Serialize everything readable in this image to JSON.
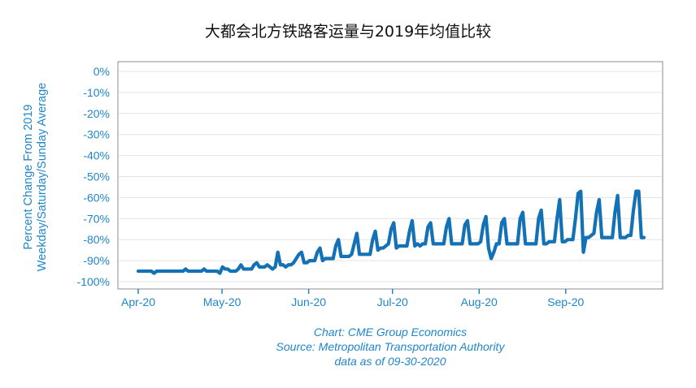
{
  "chart_data": {
    "type": "line",
    "title": "大都会北方铁路客运量与2019年均值比较",
    "ylabel_line1": "Percent Change From 2019",
    "ylabel_line2": "Weekday/Saturday/Sunday Average",
    "ylim": [
      -100,
      0
    ],
    "yticks": [
      0,
      -10,
      -20,
      -30,
      -40,
      -50,
      -60,
      -70,
      -80,
      -90,
      -100
    ],
    "ytick_labels": [
      "0%",
      "-10%",
      "-20%",
      "-30%",
      "-40%",
      "-50%",
      "-60%",
      "-70%",
      "-80%",
      "-90%",
      "-100%"
    ],
    "x_start": "2020-04-01",
    "x_end": "2020-09-29",
    "xticks": [
      "2020-04-01",
      "2020-05-01",
      "2020-06-01",
      "2020-07-01",
      "2020-08-01",
      "2020-09-01"
    ],
    "xtick_labels": [
      "Apr-20",
      "May-20",
      "Jun-20",
      "Jul-20",
      "Aug-20",
      "Sep-20"
    ],
    "grid": true,
    "line_color": "#1371b5",
    "series": [
      {
        "values": [
          -95,
          -95,
          -95,
          -95,
          -95,
          -95,
          -96,
          -95,
          -95,
          -95,
          -95,
          -95,
          -95,
          -95,
          -95,
          -95,
          -95,
          -95,
          -94,
          -95,
          -95,
          -95,
          -95,
          -95,
          -95,
          -94,
          -95,
          -95,
          -95,
          -95,
          -95,
          -96,
          -93,
          -94,
          -94,
          -95,
          -95,
          -95,
          -94,
          -92,
          -94,
          -94,
          -94,
          -94,
          -92,
          -91,
          -93,
          -93,
          -93,
          -92,
          -93,
          -94,
          -93,
          -86,
          -92,
          -92,
          -93,
          -92,
          -92,
          -91,
          -89,
          -87,
          -86,
          -91,
          -91,
          -90,
          -90,
          -90,
          -86,
          -84,
          -90,
          -89,
          -89,
          -89,
          -89,
          -83,
          -80,
          -88,
          -88,
          -88,
          -88,
          -87,
          -82,
          -77,
          -87,
          -87,
          -87,
          -87,
          -87,
          -80,
          -76,
          -85,
          -84,
          -84,
          -83,
          -82,
          -75,
          -72,
          -84,
          -83,
          -83,
          -83,
          -83,
          -76,
          -71,
          -83,
          -82,
          -83,
          -82,
          -82,
          -74,
          -72,
          -82,
          -82,
          -82,
          -82,
          -82,
          -74,
          -70,
          -82,
          -82,
          -82,
          -82,
          -82,
          -73,
          -71,
          -82,
          -82,
          -82,
          -82,
          -81,
          -73,
          -69,
          -84,
          -89,
          -86,
          -82,
          -82,
          -72,
          -70,
          -82,
          -82,
          -82,
          -82,
          -82,
          -70,
          -67,
          -82,
          -82,
          -82,
          -82,
          -82,
          -70,
          -66,
          -82,
          -82,
          -81,
          -81,
          -81,
          -70,
          -61,
          -81,
          -81,
          -80,
          -80,
          -80,
          -70,
          -58,
          -57,
          -86,
          -79,
          -79,
          -78,
          -77,
          -67,
          -61,
          -79,
          -79,
          -79,
          -79,
          -79,
          -67,
          -59,
          -79,
          -79,
          -79,
          -78,
          -78,
          -66,
          -57,
          -57,
          -79,
          -79
        ]
      }
    ]
  },
  "credits": {
    "line1": "Chart: CME Group Economics",
    "line2": "Source: Metropolitan Transportation Authority",
    "line3": "data as of 09-30-2020"
  }
}
